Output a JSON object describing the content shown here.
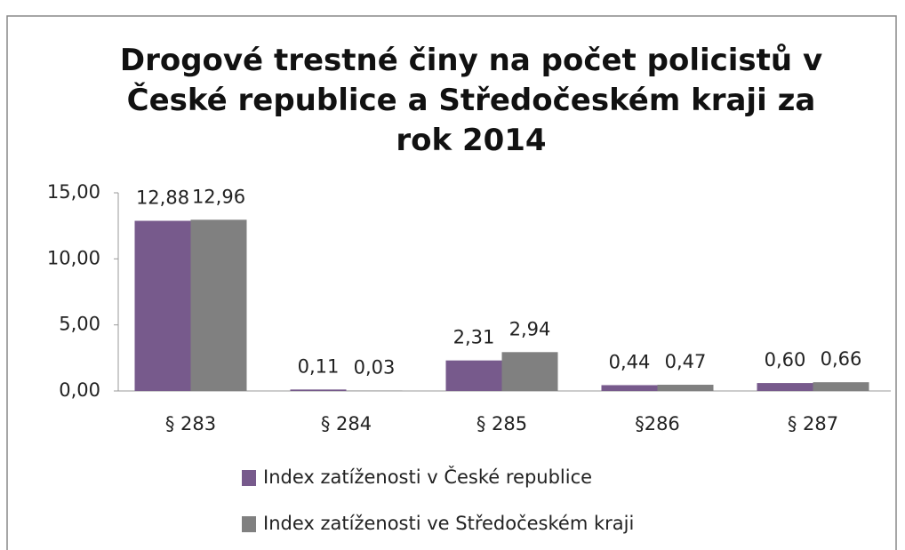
{
  "chart_data": {
    "type": "bar",
    "title": "Drogové trestné činy na počet policistů v České republice a Středočeském kraji za rok 2014",
    "categories": [
      "§ 283",
      "§ 284",
      "§ 285",
      "§286",
      "§ 287"
    ],
    "series": [
      {
        "name": "Index zatíženosti v České republice",
        "color": "#775a8c",
        "values": [
          12.88,
          0.11,
          2.31,
          0.44,
          0.6
        ],
        "value_labels": [
          "12,88",
          "0,11",
          "2,31",
          "0,44",
          "0,60"
        ]
      },
      {
        "name": "Index zatíženosti ve Středočeském kraji",
        "color": "#808080",
        "values": [
          12.96,
          0.03,
          2.94,
          0.47,
          0.66
        ],
        "value_labels": [
          "12,96",
          "0,03",
          "2,94",
          "0,47",
          "0,66"
        ]
      }
    ],
    "ylim": [
      0,
      15
    ],
    "yticks": [
      {
        "value": 0,
        "label": "0,00"
      },
      {
        "value": 5,
        "label": "5,00"
      },
      {
        "value": 10,
        "label": "10,00"
      },
      {
        "value": 15,
        "label": "15,00"
      }
    ],
    "legend": "bottom"
  }
}
